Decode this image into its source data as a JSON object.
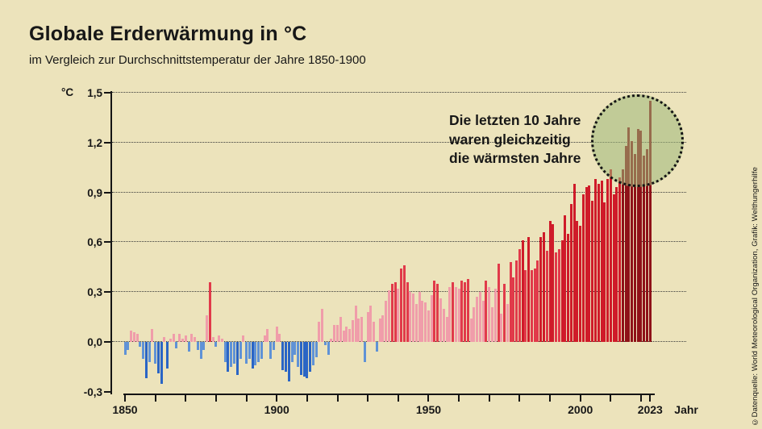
{
  "page_background": "#ece3bb",
  "title": "Globale Erderwärmung in °C",
  "subtitle": "im Vergleich zur Durchschnittstemperatur der Jahre 1850-1900",
  "annotation": {
    "lines": [
      "Die letzten 10 Jahre",
      "waren gleichzeitig",
      "die wärmsten Jahre"
    ]
  },
  "credit": "©Datenquelle: World Meteorological Organization, Grafik: Welthungerhilfe",
  "y_axis": {
    "unit_label": "°C",
    "ticks": [
      {
        "label": "1,5",
        "value": 1.5
      },
      {
        "label": "1,2",
        "value": 1.2
      },
      {
        "label": "0,9",
        "value": 0.9
      },
      {
        "label": "0,6",
        "value": 0.6
      },
      {
        "label": "0,3",
        "value": 0.3
      },
      {
        "label": "0,0",
        "value": 0.0
      },
      {
        "label": "-0,3",
        "value": -0.3
      }
    ],
    "gridline_values": [
      1.5,
      1.2,
      0.9,
      0.6,
      0.3,
      0.0
    ]
  },
  "x_axis": {
    "tick_years": [
      1850,
      1860,
      1870,
      1880,
      1890,
      1900,
      1910,
      1920,
      1930,
      1940,
      1950,
      1960,
      1970,
      1980,
      1990,
      2000,
      2010,
      2020,
      2023
    ],
    "labels": [
      {
        "text": "1850",
        "year": 1850
      },
      {
        "text": "1900",
        "year": 1900
      },
      {
        "text": "1950",
        "year": 1950
      },
      {
        "text": "2000",
        "year": 2000
      },
      {
        "text": "2023",
        "year": 2023
      }
    ],
    "axis_label": "Jahr"
  },
  "colors": {
    "background": "#ece3bb",
    "ink": "#171717",
    "bar_pink": "#f09daa",
    "bar_red_mid": "#e13a4a",
    "bar_red_deep": "#cf1b29",
    "bar_red_dark": "#8e1118",
    "bar_blue_light": "#5f92d6",
    "bar_blue_dark": "#2a65c5",
    "highlight_fill": "rgba(158,184,122,0.55)"
  },
  "highlight": {
    "start_year": 2014,
    "end_year": 2023,
    "note": "dunkelrote Balken = die letzten 10 Jahre"
  },
  "chart_data": {
    "type": "bar",
    "title": "Globale Erderwärmung in °C",
    "subtitle": "im Vergleich zur Durchschnittstemperatur der Jahre 1850-1900",
    "xlabel": "Jahr",
    "ylabel": "°C",
    "ylim": [
      -0.3,
      1.5
    ],
    "x_range": [
      1850,
      2023
    ],
    "grid": "dotted horizontal",
    "series_name": "Temperaturabweichung gegenüber 1850-1900 (°C)",
    "start_year": 1850,
    "values": [
      -0.08,
      -0.05,
      0.07,
      0.06,
      0.05,
      -0.03,
      -0.1,
      -0.22,
      -0.12,
      0.08,
      -0.13,
      -0.19,
      -0.25,
      0.03,
      -0.16,
      0.02,
      0.05,
      -0.04,
      0.05,
      0.02,
      0.04,
      -0.06,
      0.05,
      0.03,
      -0.05,
      -0.1,
      -0.05,
      0.16,
      0.36,
      0.03,
      -0.03,
      0.04,
      0.02,
      -0.12,
      -0.18,
      -0.15,
      -0.13,
      -0.2,
      -0.1,
      0.04,
      -0.13,
      -0.1,
      -0.16,
      -0.14,
      -0.12,
      -0.1,
      0.04,
      0.08,
      -0.1,
      -0.05,
      0.09,
      0.05,
      -0.17,
      -0.18,
      -0.24,
      -0.12,
      -0.08,
      -0.15,
      -0.2,
      -0.21,
      -0.22,
      -0.18,
      -0.14,
      -0.09,
      0.12,
      0.2,
      -0.02,
      -0.08,
      0.02,
      0.1,
      0.1,
      0.15,
      0.07,
      0.09,
      0.08,
      0.13,
      0.22,
      0.14,
      0.15,
      -0.12,
      0.18,
      0.22,
      0.12,
      -0.06,
      0.14,
      0.16,
      0.25,
      0.31,
      0.35,
      0.36,
      0.32,
      0.44,
      0.46,
      0.36,
      0.3,
      0.29,
      0.23,
      0.3,
      0.25,
      0.24,
      0.19,
      0.28,
      0.37,
      0.35,
      0.26,
      0.2,
      0.15,
      0.33,
      0.36,
      0.33,
      0.32,
      0.37,
      0.36,
      0.38,
      0.14,
      0.21,
      0.27,
      0.3,
      0.25,
      0.37,
      0.33,
      0.21,
      0.32,
      0.47,
      0.17,
      0.35,
      0.23,
      0.48,
      0.39,
      0.49,
      0.56,
      0.61,
      0.43,
      0.63,
      0.43,
      0.44,
      0.49,
      0.63,
      0.66,
      0.55,
      0.73,
      0.71,
      0.54,
      0.56,
      0.61,
      0.76,
      0.65,
      0.83,
      0.95,
      0.73,
      0.7,
      0.89,
      0.93,
      0.94,
      0.85,
      0.98,
      0.95,
      0.97,
      0.84,
      0.98,
      1.04,
      0.89,
      0.93,
      0.99,
      1.04,
      1.18,
      1.29,
      1.21,
      1.13,
      1.28,
      1.27,
      1.12,
      1.16,
      1.45
    ]
  }
}
